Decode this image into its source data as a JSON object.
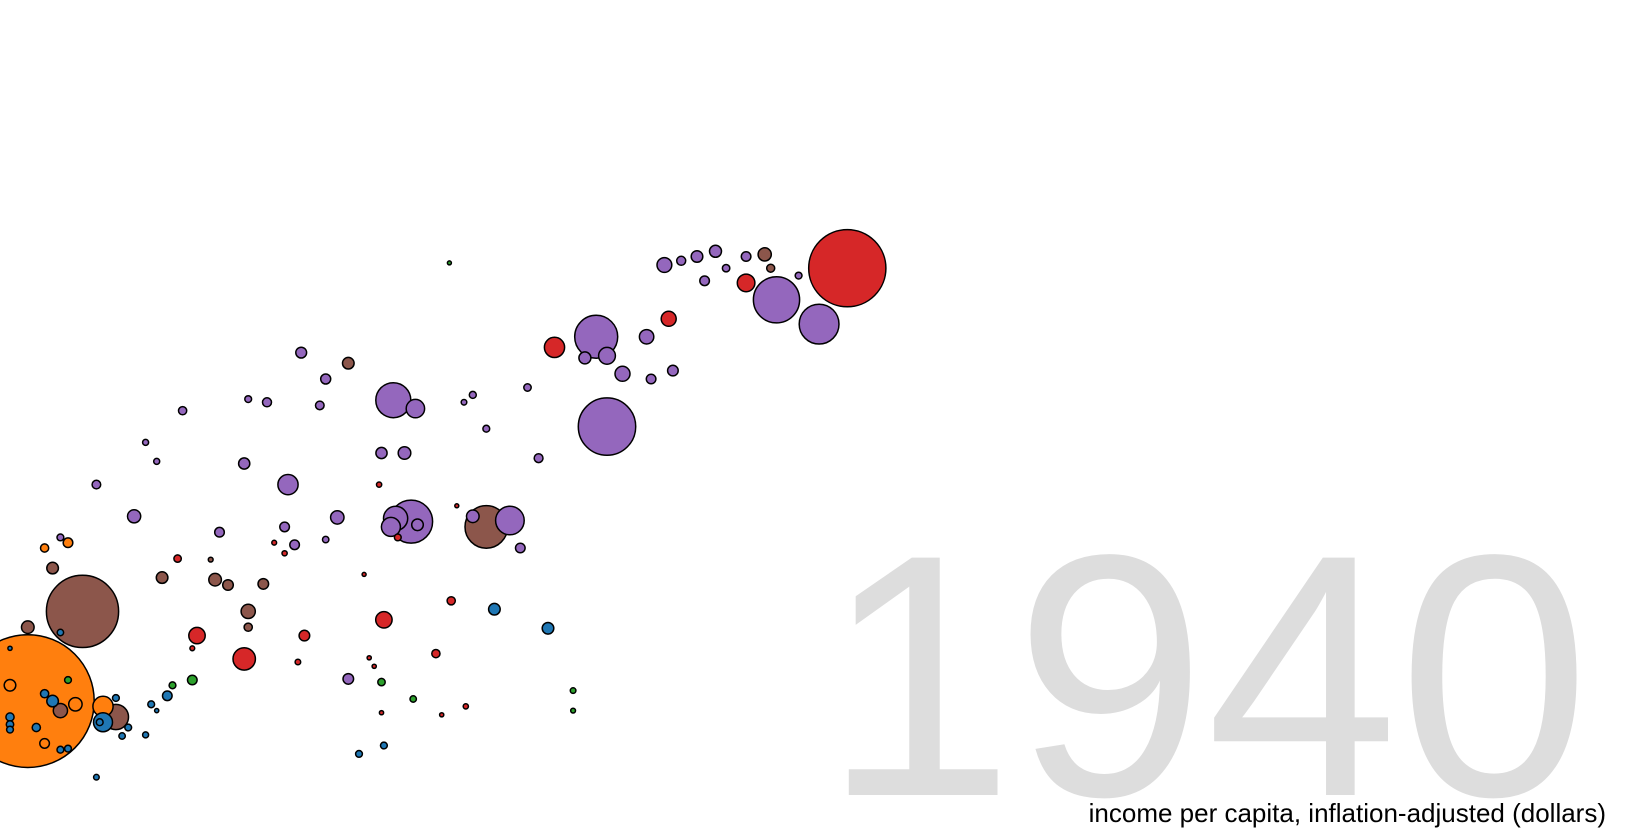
{
  "chart_data": {
    "type": "scatter",
    "title": "",
    "year": "1940",
    "xlabel": "income per capita, inflation-adjusted (dollars)",
    "ylabel": "",
    "x_scale": "log",
    "xlim": [
      300,
      100000
    ],
    "ylim": [
      10,
      85
    ],
    "legend": "none",
    "region_colors": {
      "blue": "#1f77b4",
      "orange": "#ff7f0e",
      "green": "#2ca02c",
      "red": "#d62728",
      "purple": "#9467bd",
      "brown": "#8c564b"
    },
    "points": [
      {
        "income": 6200,
        "life": 61.5,
        "population": 132000000,
        "color": "red"
      },
      {
        "income": 4800,
        "life": 58.5,
        "population": 47000000,
        "color": "purple"
      },
      {
        "income": 5600,
        "life": 56.2,
        "population": 35000000,
        "color": "purple"
      },
      {
        "income": 4300,
        "life": 60.1,
        "population": 6800000,
        "color": "red"
      },
      {
        "income": 4600,
        "life": 62.8,
        "population": 3900000,
        "color": "brown"
      },
      {
        "income": 4700,
        "life": 61.5,
        "population": 1400000,
        "color": "brown"
      },
      {
        "income": 5200,
        "life": 60.8,
        "population": 1000000,
        "color": "purple"
      },
      {
        "income": 3200,
        "life": 61.8,
        "population": 4800000,
        "color": "purple"
      },
      {
        "income": 3400,
        "life": 62.2,
        "population": 1800000,
        "color": "purple"
      },
      {
        "income": 3600,
        "life": 62.6,
        "population": 3000000,
        "color": "purple"
      },
      {
        "income": 3850,
        "life": 63.1,
        "population": 3200000,
        "color": "purple"
      },
      {
        "income": 2500,
        "life": 55.0,
        "population": 41000000,
        "color": "purple"
      },
      {
        "income": 2150,
        "life": 54.0,
        "population": 9000000,
        "color": "red"
      },
      {
        "income": 3000,
        "life": 55.0,
        "population": 4600000,
        "color": "purple"
      },
      {
        "income": 2600,
        "life": 53.2,
        "population": 6300000,
        "color": "purple"
      },
      {
        "income": 2400,
        "life": 53.0,
        "population": 3200000,
        "color": "purple"
      },
      {
        "income": 2600,
        "life": 46.5,
        "population": 73000000,
        "color": "purple"
      },
      {
        "income": 1950,
        "life": 50.2,
        "population": 1200000,
        "color": "purple"
      },
      {
        "income": 1600,
        "life": 49.5,
        "population": 1100000,
        "color": "purple"
      },
      {
        "income": 1550,
        "life": 48.8,
        "population": 700000,
        "color": "purple"
      },
      {
        "income": 1200,
        "life": 49.0,
        "population": 27000000,
        "color": "purple"
      },
      {
        "income": 1300,
        "life": 48.2,
        "population": 7500000,
        "color": "purple"
      },
      {
        "income": 1150,
        "life": 44.0,
        "population": 2800000,
        "color": "purple"
      },
      {
        "income": 820,
        "life": 41.0,
        "population": 9000000,
        "color": "purple"
      },
      {
        "income": 700,
        "life": 43.0,
        "population": 2800000,
        "color": "purple"
      },
      {
        "income": 860,
        "life": 53.5,
        "population": 2600000,
        "color": "purple"
      },
      {
        "income": 940,
        "life": 51.0,
        "population": 2200000,
        "color": "purple"
      },
      {
        "income": 1020,
        "life": 52.5,
        "population": 3000000,
        "color": "brown"
      },
      {
        "income": 760,
        "life": 48.8,
        "population": 1800000,
        "color": "purple"
      },
      {
        "income": 710,
        "life": 49.1,
        "population": 1000000,
        "color": "purple"
      },
      {
        "income": 2030,
        "life": 43.5,
        "population": 1700000,
        "color": "purple"
      },
      {
        "income": 1680,
        "life": 46.3,
        "population": 1000000,
        "color": "purple"
      },
      {
        "income": 1600,
        "life": 38.0,
        "population": 3500000,
        "color": "purple"
      },
      {
        "income": 470,
        "life": 38.0,
        "population": 3800000,
        "color": "purple"
      },
      {
        "income": 510,
        "life": 43.2,
        "population": 800000,
        "color": "purple"
      },
      {
        "income": 490,
        "life": 45.0,
        "population": 800000,
        "color": "purple"
      },
      {
        "income": 1280,
        "life": 37.5,
        "population": 41000000,
        "color": "purple"
      },
      {
        "income": 1210,
        "life": 37.8,
        "population": 13000000,
        "color": "purple"
      },
      {
        "income": 1190,
        "life": 37.0,
        "population": 8000000,
        "color": "purple"
      },
      {
        "income": 1220,
        "life": 36.0,
        "population": 1000000,
        "color": "red"
      },
      {
        "income": 1310,
        "life": 37.2,
        "population": 3000000,
        "color": "purple"
      },
      {
        "income": 1680,
        "life": 37.0,
        "population": 40000000,
        "color": "brown"
      },
      {
        "income": 1830,
        "life": 37.6,
        "population": 18000000,
        "color": "purple"
      },
      {
        "income": 1510,
        "life": 39.0,
        "population": 300000,
        "color": "red"
      },
      {
        "income": 1250,
        "life": 44.0,
        "population": 3500000,
        "color": "purple"
      },
      {
        "income": 980,
        "life": 37.9,
        "population": 4000000,
        "color": "purple"
      },
      {
        "income": 840,
        "life": 35.3,
        "population": 2000000,
        "color": "purple"
      },
      {
        "income": 940,
        "life": 35.8,
        "population": 900000,
        "color": "purple"
      },
      {
        "income": 780,
        "life": 35.5,
        "population": 500000,
        "color": "red"
      },
      {
        "income": 810,
        "life": 34.5,
        "population": 600000,
        "color": "red"
      },
      {
        "income": 810,
        "life": 37.0,
        "population": 2000000,
        "color": "purple"
      },
      {
        "income": 1900,
        "life": 35.0,
        "population": 2000000,
        "color": "purple"
      },
      {
        "income": 640,
        "life": 36.5,
        "population": 2000000,
        "color": "purple"
      },
      {
        "income": 550,
        "life": 34.0,
        "population": 1200000,
        "color": "red"
      },
      {
        "income": 1140,
        "life": 41.0,
        "population": 600000,
        "color": "red"
      },
      {
        "income": 920,
        "life": 48.5,
        "population": 1600000,
        "color": "purple"
      },
      {
        "income": 560,
        "life": 48.0,
        "population": 1500000,
        "color": "purple"
      },
      {
        "income": 2750,
        "life": 51.5,
        "population": 5000000,
        "color": "purple"
      },
      {
        "income": 3050,
        "life": 51.0,
        "population": 2000000,
        "color": "purple"
      },
      {
        "income": 3300,
        "life": 51.8,
        "population": 2500000,
        "color": "purple"
      },
      {
        "income": 3250,
        "life": 56.7,
        "population": 5000000,
        "color": "red"
      },
      {
        "income": 3700,
        "life": 60.3,
        "population": 2000000,
        "color": "purple"
      },
      {
        "income": 4000,
        "life": 61.5,
        "population": 1200000,
        "color": "purple"
      },
      {
        "income": 4300,
        "life": 62.6,
        "population": 2000000,
        "color": "purple"
      },
      {
        "income": 1470,
        "life": 62.0,
        "population": 300000,
        "color": "green"
      },
      {
        "income": 410,
        "life": 41.0,
        "population": 1600000,
        "color": "purple"
      },
      {
        "income": 340,
        "life": 35.0,
        "population": 1500000,
        "color": "orange"
      },
      {
        "income": 630,
        "life": 32.0,
        "population": 3500000,
        "color": "brown"
      },
      {
        "income": 660,
        "life": 31.5,
        "population": 2500000,
        "color": "brown"
      },
      {
        "income": 750,
        "life": 31.6,
        "population": 2500000,
        "color": "brown"
      },
      {
        "income": 710,
        "life": 29.0,
        "population": 4500000,
        "color": "brown"
      },
      {
        "income": 710,
        "life": 27.5,
        "population": 1500000,
        "color": "brown"
      },
      {
        "income": 870,
        "life": 26.7,
        "population": 2500000,
        "color": "red"
      },
      {
        "income": 700,
        "life": 24.5,
        "population": 11000000,
        "color": "red"
      },
      {
        "income": 1160,
        "life": 28.2,
        "population": 6000000,
        "color": "red"
      },
      {
        "income": 1080,
        "life": 32.5,
        "population": 300000,
        "color": "red"
      },
      {
        "income": 1480,
        "life": 30.0,
        "population": 1500000,
        "color": "red"
      },
      {
        "income": 1400,
        "life": 25.0,
        "population": 1500000,
        "color": "red"
      },
      {
        "income": 850,
        "life": 24.2,
        "population": 700000,
        "color": "red"
      },
      {
        "income": 2100,
        "life": 27.4,
        "population": 3000000,
        "color": "blue"
      },
      {
        "income": 1100,
        "life": 24.6,
        "population": 400000,
        "color": "red"
      },
      {
        "income": 1120,
        "life": 23.8,
        "population": 400000,
        "color": "red"
      },
      {
        "income": 1020,
        "life": 22.6,
        "population": 2500000,
        "color": "purple"
      },
      {
        "income": 1150,
        "life": 22.3,
        "population": 1200000,
        "color": "green"
      },
      {
        "income": 1290,
        "life": 20.7,
        "population": 900000,
        "color": "green"
      },
      {
        "income": 1560,
        "life": 20.0,
        "population": 600000,
        "color": "red"
      },
      {
        "income": 2300,
        "life": 21.5,
        "population": 700000,
        "color": "green"
      },
      {
        "income": 2300,
        "life": 19.6,
        "population": 500000,
        "color": "green"
      },
      {
        "income": 1160,
        "life": 16.3,
        "population": 1000000,
        "color": "blue"
      },
      {
        "income": 590,
        "life": 26.7,
        "population": 6000000,
        "color": "red"
      },
      {
        "income": 580,
        "life": 25.5,
        "population": 500000,
        "color": "red"
      },
      {
        "income": 580,
        "life": 22.5,
        "population": 2000000,
        "color": "green"
      },
      {
        "income": 540,
        "life": 22.0,
        "population": 1000000,
        "color": "green"
      },
      {
        "income": 530,
        "life": 21.0,
        "population": 2000000,
        "color": "blue"
      },
      {
        "income": 500,
        "life": 20.2,
        "population": 1000000,
        "color": "blue"
      },
      {
        "income": 490,
        "life": 17.3,
        "population": 800000,
        "color": "blue"
      },
      {
        "income": 510,
        "life": 19.6,
        "population": 400000,
        "color": "blue"
      },
      {
        "income": 390,
        "life": 29.0,
        "population": 115000000,
        "color": "brown"
      },
      {
        "income": 350,
        "life": 33.1,
        "population": 3000000,
        "color": "brown"
      },
      {
        "income": 320,
        "life": 27.5,
        "population": 3500000,
        "color": "brown"
      },
      {
        "income": 320,
        "life": 20.5,
        "population": 390000000,
        "color": "orange"
      },
      {
        "income": 300,
        "life": 22.0,
        "population": 3000000,
        "color": "orange"
      },
      {
        "income": 380,
        "life": 20.2,
        "population": 4000000,
        "color": "orange"
      },
      {
        "income": 420,
        "life": 20.0,
        "population": 9000000,
        "color": "orange"
      },
      {
        "income": 360,
        "life": 19.6,
        "population": 4500000,
        "color": "brown"
      },
      {
        "income": 440,
        "life": 19.0,
        "population": 14000000,
        "color": "brown"
      },
      {
        "income": 420,
        "life": 18.5,
        "population": 8000000,
        "color": "blue"
      },
      {
        "income": 350,
        "life": 20.5,
        "population": 3000000,
        "color": "blue"
      },
      {
        "income": 340,
        "life": 21.2,
        "population": 1500000,
        "color": "blue"
      },
      {
        "income": 370,
        "life": 22.5,
        "population": 1000000,
        "color": "green"
      },
      {
        "income": 360,
        "life": 27.0,
        "population": 900000,
        "color": "blue"
      },
      {
        "income": 300,
        "life": 25.5,
        "population": 400000,
        "color": "blue"
      },
      {
        "income": 300,
        "life": 19.0,
        "population": 1500000,
        "color": "blue"
      },
      {
        "income": 300,
        "life": 18.3,
        "population": 1200000,
        "color": "blue"
      },
      {
        "income": 300,
        "life": 17.8,
        "population": 1000000,
        "color": "blue"
      },
      {
        "income": 330,
        "life": 18.0,
        "population": 1500000,
        "color": "blue"
      },
      {
        "income": 340,
        "life": 16.5,
        "population": 2000000,
        "color": "orange"
      },
      {
        "income": 360,
        "life": 15.9,
        "population": 1000000,
        "color": "blue"
      },
      {
        "income": 370,
        "life": 16.0,
        "population": 1000000,
        "color": "blue"
      },
      {
        "income": 410,
        "life": 13.3,
        "population": 700000,
        "color": "blue"
      },
      {
        "income": 440,
        "life": 20.8,
        "population": 1000000,
        "color": "blue"
      },
      {
        "income": 460,
        "life": 18.0,
        "population": 1000000,
        "color": "blue"
      },
      {
        "income": 450,
        "life": 17.2,
        "population": 900000,
        "color": "blue"
      },
      {
        "income": 415,
        "life": 18.5,
        "population": 1000000,
        "color": "blue"
      },
      {
        "income": 370,
        "life": 35.5,
        "population": 2000000,
        "color": "orange"
      },
      {
        "income": 360,
        "life": 36.0,
        "population": 1000000,
        "color": "purple"
      },
      {
        "income": 520,
        "life": 32.2,
        "population": 3000000,
        "color": "brown"
      },
      {
        "income": 620,
        "life": 33.9,
        "population": 500000,
        "color": "brown"
      },
      {
        "income": 1730,
        "life": 29.2,
        "population": 3000000,
        "color": "blue"
      },
      {
        "income": 1150,
        "life": 19.4,
        "population": 400000,
        "color": "red"
      },
      {
        "income": 1430,
        "life": 19.2,
        "population": 400000,
        "color": "red"
      },
      {
        "income": 1060,
        "life": 15.5,
        "population": 1000000,
        "color": "blue"
      }
    ]
  }
}
